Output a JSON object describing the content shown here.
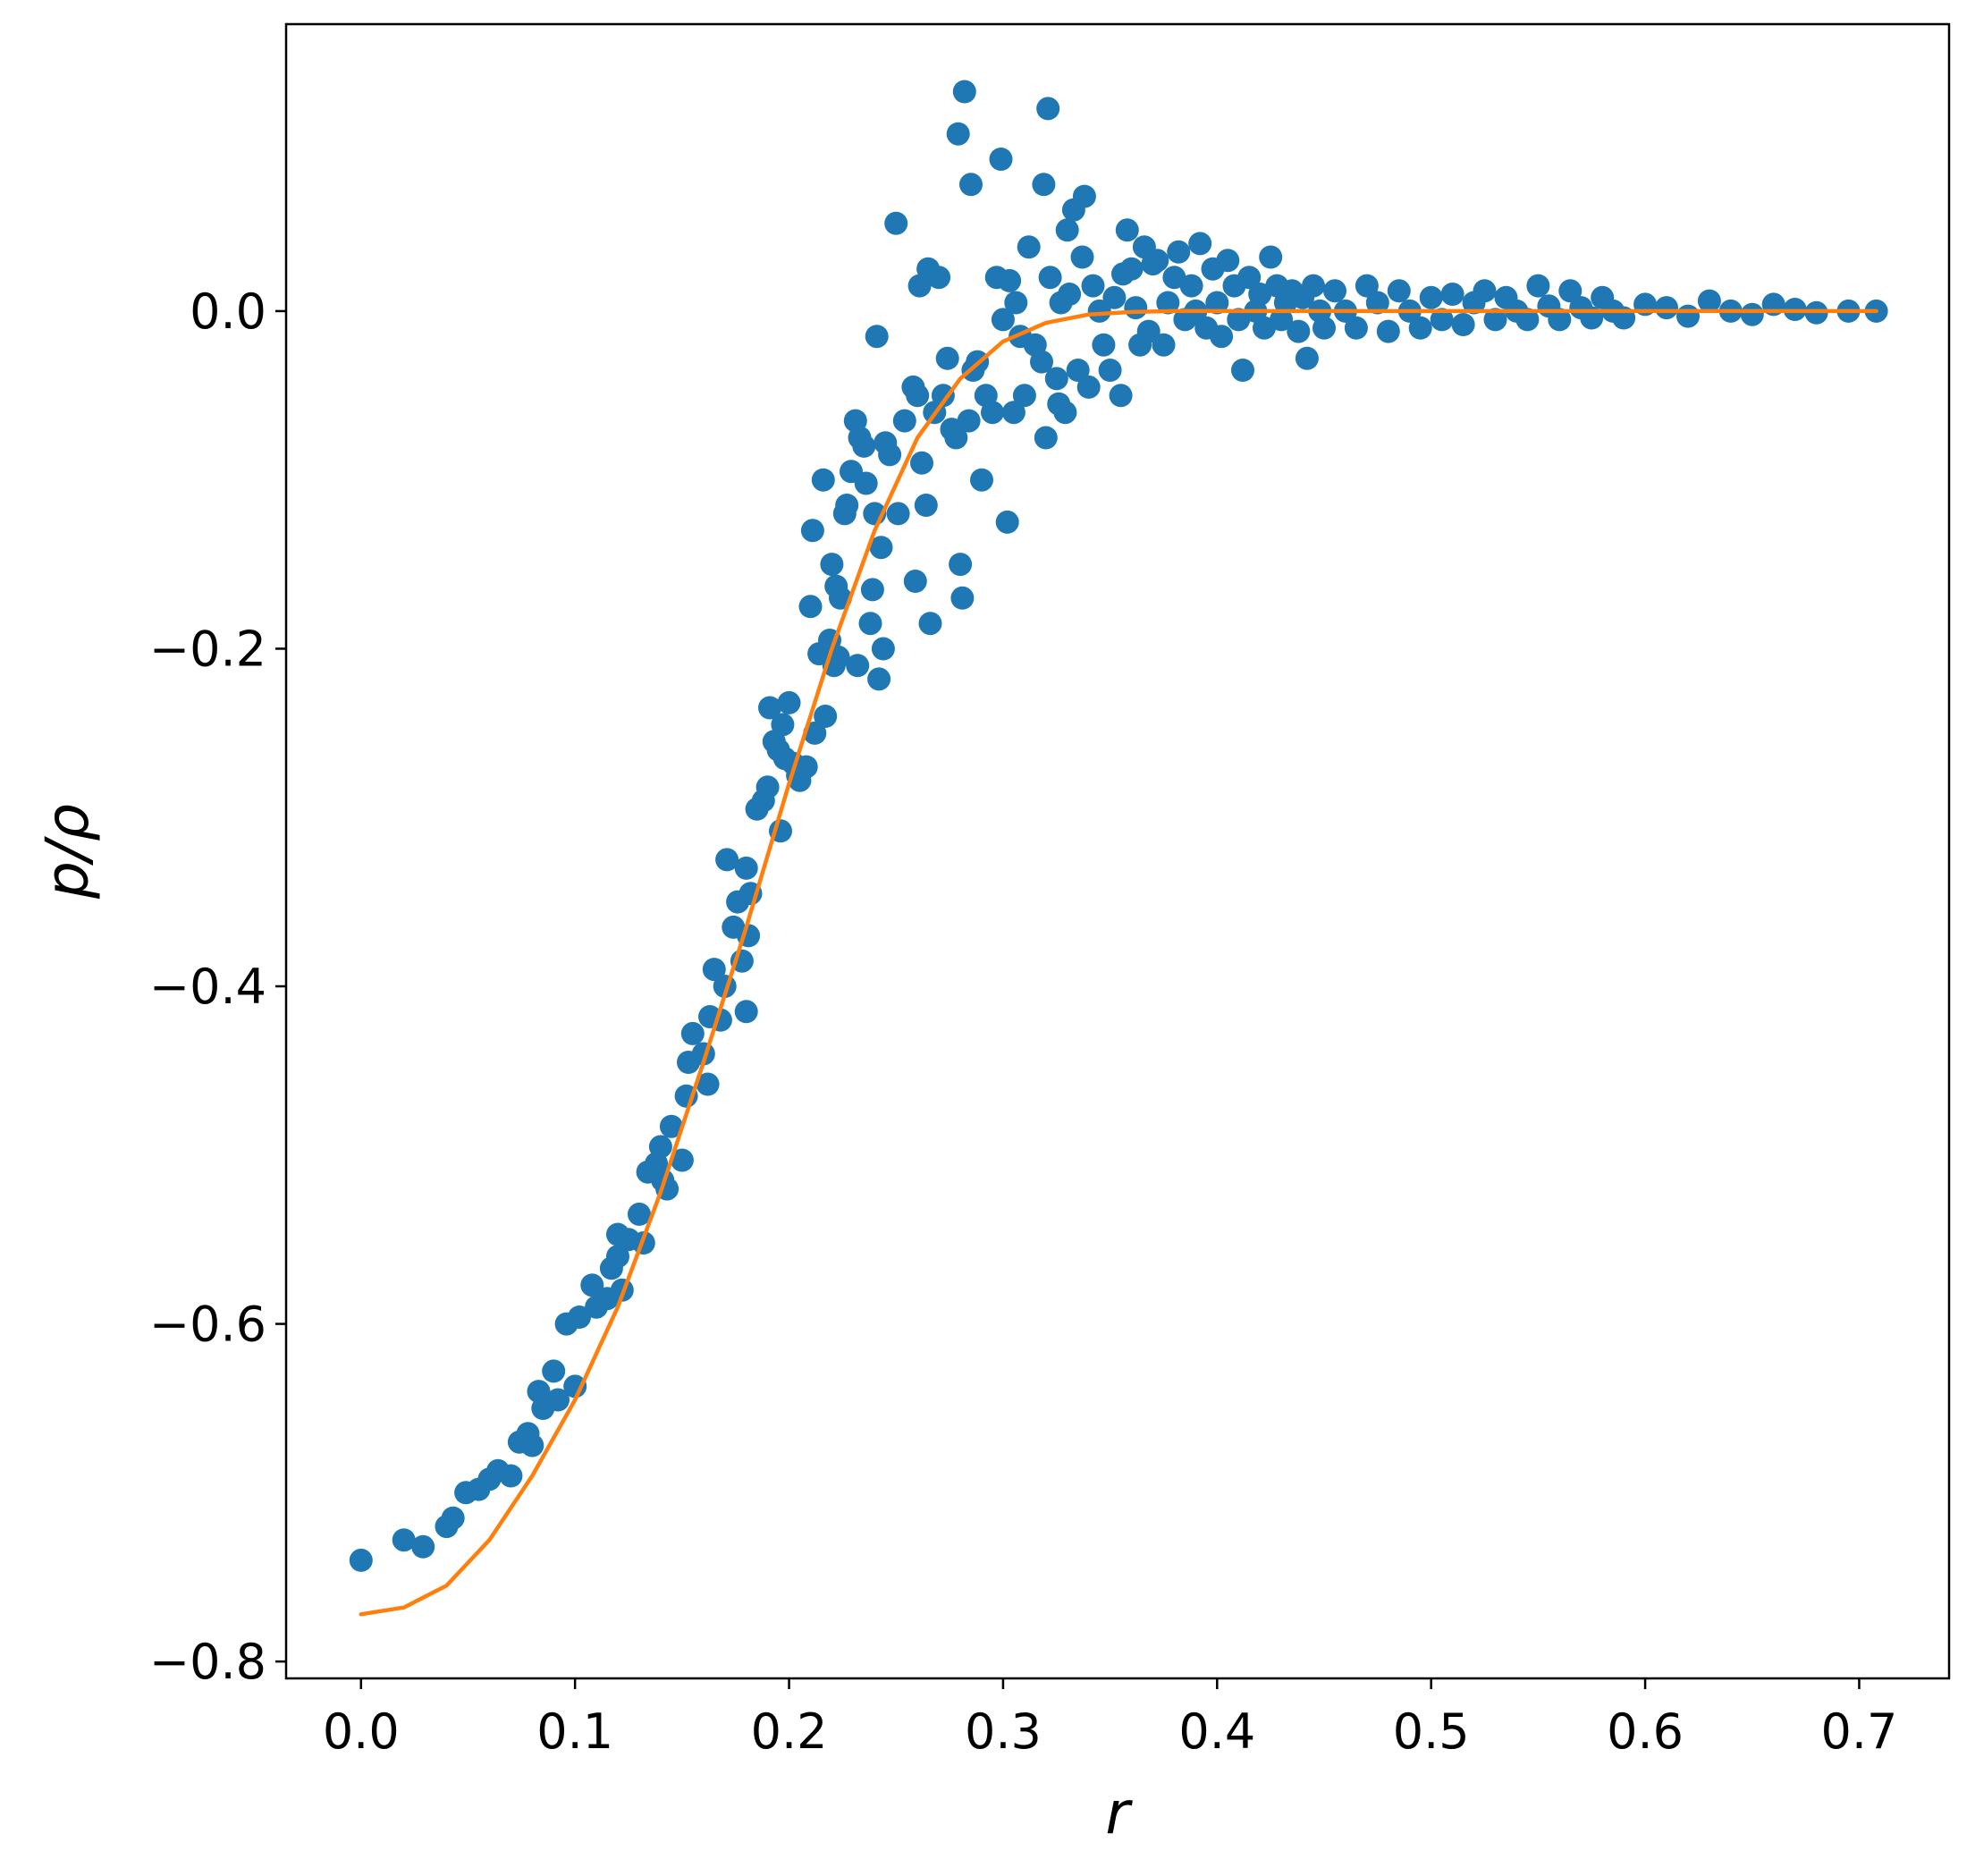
{
  "chart_data": {
    "type": "scatter",
    "title": "",
    "xlabel": "r",
    "ylabel": "p/ρ",
    "xlim": [
      -0.035,
      0.742
    ],
    "ylim": [
      -0.81,
      0.17
    ],
    "xticks": [
      0.0,
      0.1,
      0.2,
      0.3,
      0.4,
      0.5,
      0.6,
      0.7
    ],
    "xtick_labels": [
      "0.0",
      "0.1",
      "0.2",
      "0.3",
      "0.4",
      "0.5",
      "0.6",
      "0.7"
    ],
    "yticks": [
      0.0,
      -0.2,
      -0.4,
      -0.6,
      -0.8
    ],
    "ytick_labels": [
      "0.0",
      "−0.2",
      "−0.4",
      "−0.6",
      "−0.8"
    ],
    "grid": false,
    "colors": {
      "scatter": "#1f77b4",
      "curve": "#ff7f0e"
    },
    "series": [
      {
        "kind": "scatter",
        "points": [
          [
            0.0,
            -0.74
          ],
          [
            0.02,
            -0.728
          ],
          [
            0.029,
            -0.732
          ],
          [
            0.04,
            -0.72
          ],
          [
            0.043,
            -0.715
          ],
          [
            0.049,
            -0.7
          ],
          [
            0.055,
            -0.698
          ],
          [
            0.06,
            -0.692
          ],
          [
            0.064,
            -0.687
          ],
          [
            0.07,
            -0.69
          ],
          [
            0.074,
            -0.67
          ],
          [
            0.078,
            -0.665
          ],
          [
            0.08,
            -0.672
          ],
          [
            0.083,
            -0.64
          ],
          [
            0.085,
            -0.65
          ],
          [
            0.09,
            -0.628
          ],
          [
            0.092,
            -0.645
          ],
          [
            0.096,
            -0.6
          ],
          [
            0.1,
            -0.637
          ],
          [
            0.102,
            -0.596
          ],
          [
            0.108,
            -0.577
          ],
          [
            0.11,
            -0.59
          ],
          [
            0.115,
            -0.585
          ],
          [
            0.117,
            -0.567
          ],
          [
            0.12,
            -0.56
          ],
          [
            0.12,
            -0.547
          ],
          [
            0.122,
            -0.58
          ],
          [
            0.125,
            -0.55
          ],
          [
            0.13,
            -0.535
          ],
          [
            0.132,
            -0.552
          ],
          [
            0.134,
            -0.51
          ],
          [
            0.138,
            -0.505
          ],
          [
            0.14,
            -0.495
          ],
          [
            0.141,
            -0.515
          ],
          [
            0.143,
            -0.52
          ],
          [
            0.145,
            -0.483
          ],
          [
            0.15,
            -0.503
          ],
          [
            0.152,
            -0.465
          ],
          [
            0.153,
            -0.445
          ],
          [
            0.155,
            -0.428
          ],
          [
            0.16,
            -0.44
          ],
          [
            0.162,
            -0.458
          ],
          [
            0.163,
            -0.418
          ],
          [
            0.165,
            -0.39
          ],
          [
            0.168,
            -0.42
          ],
          [
            0.17,
            -0.4
          ],
          [
            0.171,
            -0.325
          ],
          [
            0.174,
            -0.365
          ],
          [
            0.176,
            -0.35
          ],
          [
            0.178,
            -0.385
          ],
          [
            0.18,
            -0.33
          ],
          [
            0.181,
            -0.37
          ],
          [
            0.182,
            -0.345
          ],
          [
            0.18,
            -0.415
          ],
          [
            0.185,
            -0.295
          ],
          [
            0.188,
            -0.29
          ],
          [
            0.19,
            -0.282
          ],
          [
            0.191,
            -0.235
          ],
          [
            0.193,
            -0.255
          ],
          [
            0.195,
            -0.26
          ],
          [
            0.196,
            -0.308
          ],
          [
            0.197,
            -0.245
          ],
          [
            0.198,
            -0.265
          ],
          [
            0.2,
            -0.232
          ],
          [
            0.202,
            -0.268
          ],
          [
            0.204,
            -0.275
          ],
          [
            0.205,
            -0.278
          ],
          [
            0.208,
            -0.27
          ],
          [
            0.21,
            -0.175
          ],
          [
            0.211,
            -0.13
          ],
          [
            0.212,
            -0.25
          ],
          [
            0.214,
            -0.203
          ],
          [
            0.216,
            -0.1
          ],
          [
            0.217,
            -0.24
          ],
          [
            0.219,
            -0.195
          ],
          [
            0.22,
            -0.15
          ],
          [
            0.221,
            -0.21
          ],
          [
            0.222,
            -0.163
          ],
          [
            0.223,
            -0.205
          ],
          [
            0.224,
            -0.17
          ],
          [
            0.226,
            -0.12
          ],
          [
            0.227,
            -0.115
          ],
          [
            0.229,
            -0.095
          ],
          [
            0.231,
            -0.065
          ],
          [
            0.233,
            -0.075
          ],
          [
            0.235,
            -0.08
          ],
          [
            0.236,
            -0.102
          ],
          [
            0.232,
            -0.21
          ],
          [
            0.238,
            -0.185
          ],
          [
            0.239,
            -0.165
          ],
          [
            0.24,
            -0.12
          ],
          [
            0.241,
            -0.015
          ],
          [
            0.242,
            -0.218
          ],
          [
            0.243,
            -0.14
          ],
          [
            0.244,
            -0.2
          ],
          [
            0.245,
            -0.078
          ],
          [
            0.247,
            -0.085
          ],
          [
            0.25,
            0.052
          ],
          [
            0.251,
            -0.12
          ],
          [
            0.254,
            -0.065
          ],
          [
            0.258,
            -0.045
          ],
          [
            0.259,
            -0.16
          ],
          [
            0.26,
            -0.05
          ],
          [
            0.261,
            0.015
          ],
          [
            0.262,
            -0.09
          ],
          [
            0.264,
            -0.115
          ],
          [
            0.265,
            0.025
          ],
          [
            0.266,
            -0.185
          ],
          [
            0.268,
            -0.06
          ],
          [
            0.27,
            0.02
          ],
          [
            0.272,
            -0.05
          ],
          [
            0.274,
            -0.028
          ],
          [
            0.276,
            -0.07
          ],
          [
            0.278,
            -0.075
          ],
          [
            0.279,
            0.105
          ],
          [
            0.28,
            -0.15
          ],
          [
            0.281,
            -0.17
          ],
          [
            0.282,
            0.13
          ],
          [
            0.284,
            -0.065
          ],
          [
            0.285,
            0.075
          ],
          [
            0.286,
            -0.035
          ],
          [
            0.288,
            -0.03
          ],
          [
            0.29,
            -0.1
          ],
          [
            0.292,
            -0.05
          ],
          [
            0.295,
            -0.06
          ],
          [
            0.297,
            0.02
          ],
          [
            0.299,
            0.09
          ],
          [
            0.3,
            -0.005
          ],
          [
            0.302,
            -0.125
          ],
          [
            0.303,
            0.018
          ],
          [
            0.305,
            -0.06
          ],
          [
            0.306,
            0.005
          ],
          [
            0.308,
            -0.015
          ],
          [
            0.31,
            -0.05
          ],
          [
            0.312,
            0.038
          ],
          [
            0.315,
            -0.02
          ],
          [
            0.318,
            -0.03
          ],
          [
            0.319,
            0.075
          ],
          [
            0.32,
            -0.075
          ],
          [
            0.321,
            0.12
          ],
          [
            0.322,
            0.02
          ],
          [
            0.325,
            -0.04
          ],
          [
            0.326,
            -0.055
          ],
          [
            0.327,
            0.005
          ],
          [
            0.329,
            -0.06
          ],
          [
            0.33,
            0.048
          ],
          [
            0.331,
            0.01
          ],
          [
            0.333,
            0.06
          ],
          [
            0.335,
            -0.035
          ],
          [
            0.337,
            0.032
          ],
          [
            0.338,
            0.068
          ],
          [
            0.34,
            -0.045
          ],
          [
            0.342,
            0.015
          ],
          [
            0.345,
            0.0
          ],
          [
            0.347,
            -0.02
          ],
          [
            0.35,
            -0.035
          ],
          [
            0.352,
            0.008
          ],
          [
            0.355,
            -0.05
          ],
          [
            0.356,
            0.022
          ],
          [
            0.358,
            0.048
          ],
          [
            0.36,
            0.025
          ],
          [
            0.362,
            0.002
          ],
          [
            0.364,
            -0.02
          ],
          [
            0.366,
            0.038
          ],
          [
            0.368,
            -0.012
          ],
          [
            0.37,
            0.028
          ],
          [
            0.372,
            0.03
          ],
          [
            0.375,
            -0.02
          ],
          [
            0.377,
            0.005
          ],
          [
            0.38,
            0.02
          ],
          [
            0.382,
            0.035
          ],
          [
            0.385,
            -0.005
          ],
          [
            0.388,
            0.015
          ],
          [
            0.39,
            0.0
          ],
          [
            0.392,
            0.04
          ],
          [
            0.395,
            -0.01
          ],
          [
            0.398,
            0.025
          ],
          [
            0.4,
            0.005
          ],
          [
            0.402,
            -0.015
          ],
          [
            0.405,
            0.03
          ],
          [
            0.408,
            0.015
          ],
          [
            0.41,
            -0.005
          ],
          [
            0.412,
            -0.035
          ],
          [
            0.415,
            0.02
          ],
          [
            0.418,
            0.0
          ],
          [
            0.42,
            0.01
          ],
          [
            0.422,
            -0.01
          ],
          [
            0.425,
            0.032
          ],
          [
            0.428,
            0.015
          ],
          [
            0.43,
            -0.005
          ],
          [
            0.432,
            0.005
          ],
          [
            0.435,
            0.012
          ],
          [
            0.438,
            -0.012
          ],
          [
            0.44,
            0.008
          ],
          [
            0.442,
            -0.028
          ],
          [
            0.445,
            0.015
          ],
          [
            0.448,
            0.0
          ],
          [
            0.45,
            -0.01
          ],
          [
            0.455,
            0.012
          ],
          [
            0.46,
            0.0
          ],
          [
            0.465,
            -0.01
          ],
          [
            0.47,
            0.015
          ],
          [
            0.475,
            0.005
          ],
          [
            0.48,
            -0.012
          ],
          [
            0.485,
            0.012
          ],
          [
            0.49,
            0.0
          ],
          [
            0.495,
            -0.01
          ],
          [
            0.5,
            0.008
          ],
          [
            0.505,
            -0.005
          ],
          [
            0.51,
            0.01
          ],
          [
            0.515,
            -0.008
          ],
          [
            0.52,
            0.005
          ],
          [
            0.525,
            0.012
          ],
          [
            0.53,
            -0.005
          ],
          [
            0.535,
            0.008
          ],
          [
            0.54,
            0.0
          ],
          [
            0.545,
            -0.005
          ],
          [
            0.55,
            0.015
          ],
          [
            0.555,
            0.003
          ],
          [
            0.56,
            -0.005
          ],
          [
            0.565,
            0.012
          ],
          [
            0.57,
            0.002
          ],
          [
            0.575,
            -0.004
          ],
          [
            0.58,
            0.008
          ],
          [
            0.585,
            0.0
          ],
          [
            0.59,
            -0.004
          ],
          [
            0.6,
            0.004
          ],
          [
            0.61,
            0.002
          ],
          [
            0.62,
            -0.003
          ],
          [
            0.63,
            0.006
          ],
          [
            0.64,
            0.0
          ],
          [
            0.65,
            -0.002
          ],
          [
            0.66,
            0.004
          ],
          [
            0.67,
            0.001
          ],
          [
            0.68,
            -0.001
          ],
          [
            0.695,
            0.0
          ],
          [
            0.708,
            0.0
          ]
        ]
      },
      {
        "kind": "line",
        "description_model": "fitted curve",
        "points": [
          [
            0.0,
            -0.772
          ],
          [
            0.02,
            -0.768
          ],
          [
            0.04,
            -0.755
          ],
          [
            0.06,
            -0.728
          ],
          [
            0.08,
            -0.69
          ],
          [
            0.1,
            -0.645
          ],
          [
            0.12,
            -0.59
          ],
          [
            0.14,
            -0.522
          ],
          [
            0.16,
            -0.445
          ],
          [
            0.18,
            -0.365
          ],
          [
            0.2,
            -0.28
          ],
          [
            0.22,
            -0.2
          ],
          [
            0.24,
            -0.13
          ],
          [
            0.26,
            -0.075
          ],
          [
            0.28,
            -0.04
          ],
          [
            0.3,
            -0.018
          ],
          [
            0.32,
            -0.007
          ],
          [
            0.34,
            -0.002
          ],
          [
            0.36,
            -0.0005
          ],
          [
            0.38,
            0.0
          ],
          [
            0.4,
            0.0
          ],
          [
            0.5,
            0.0
          ],
          [
            0.6,
            0.0
          ],
          [
            0.708,
            0.0
          ]
        ]
      }
    ]
  }
}
